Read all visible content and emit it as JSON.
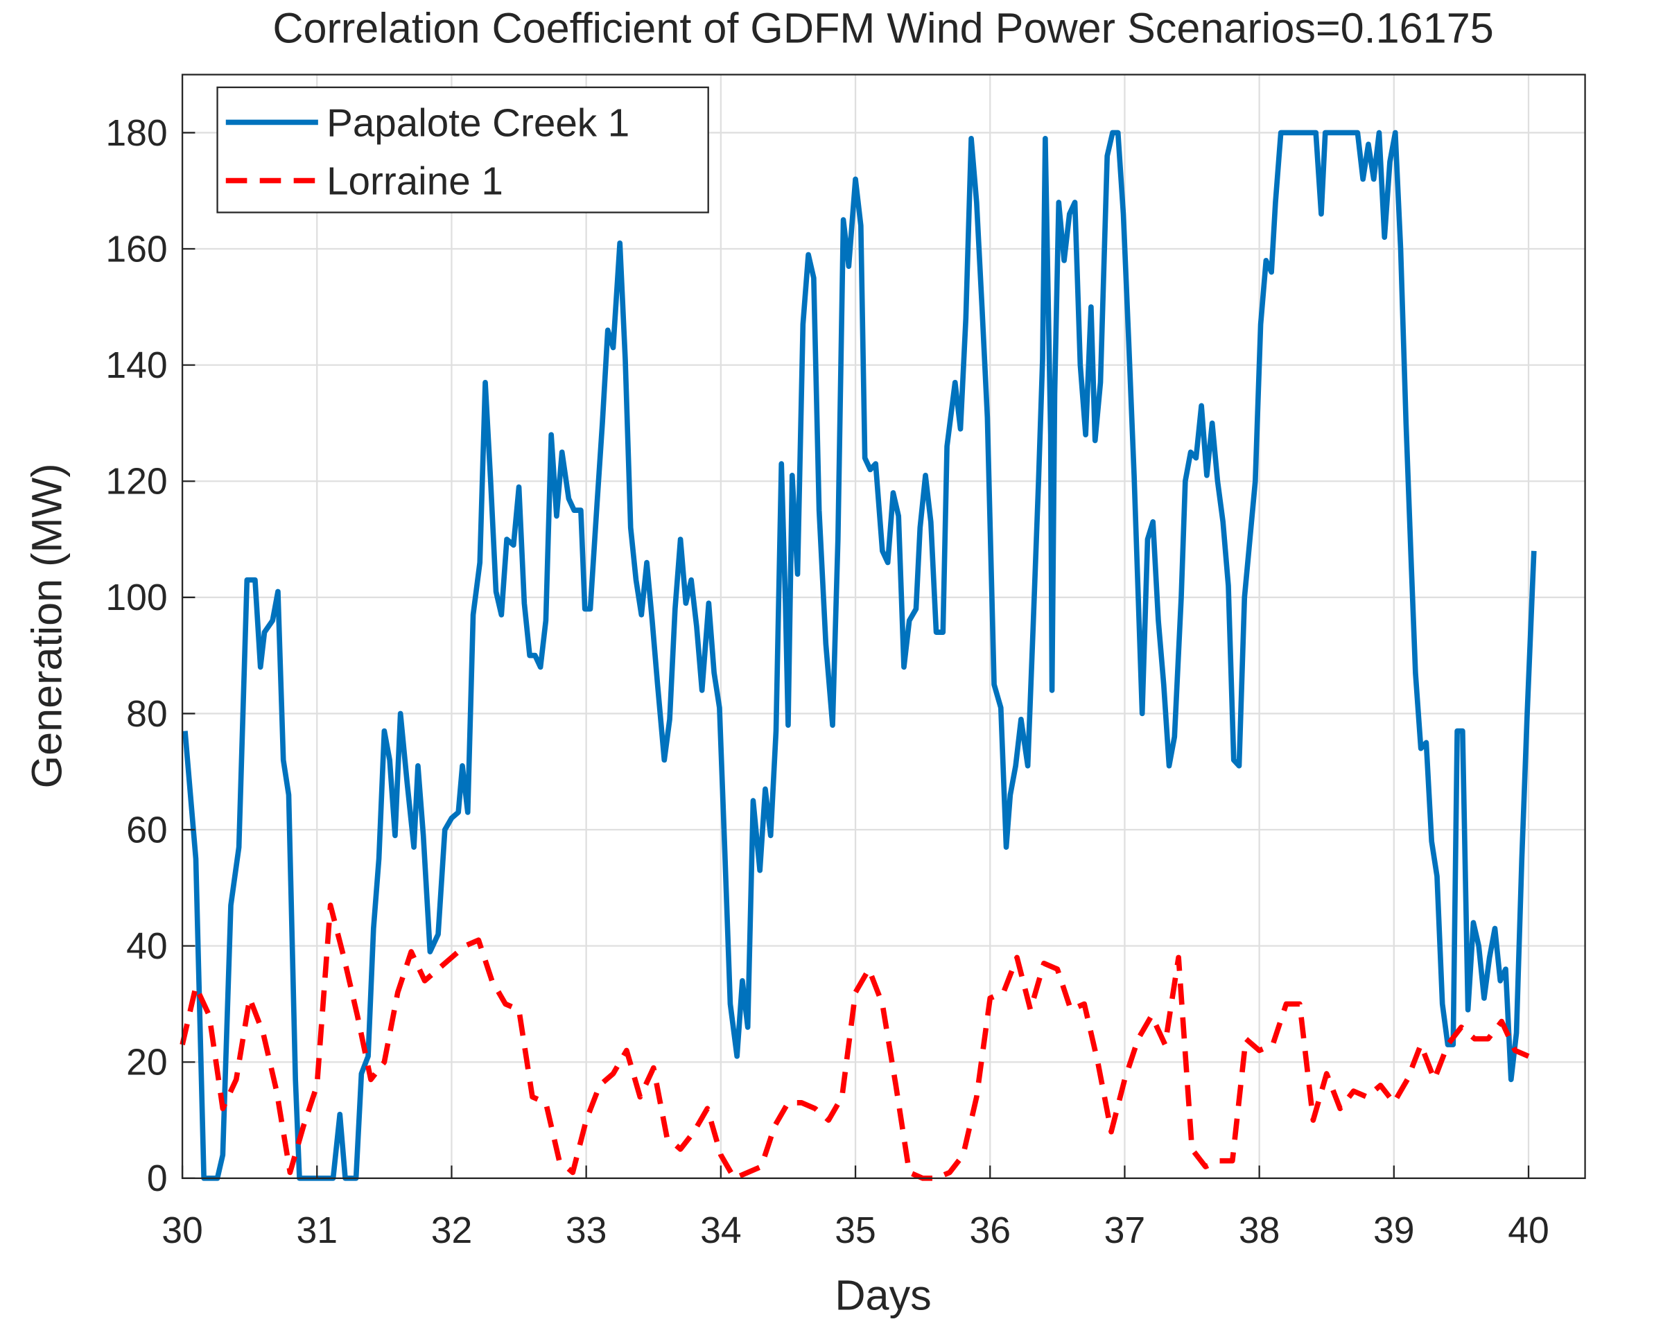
{
  "chart_data": {
    "type": "line",
    "title": "Correlation Coefficient of GDFM Wind Power Scenarios=0.16175",
    "xlabel": "Days",
    "ylabel": "Generation (MW)",
    "xlim": [
      30,
      40.42
    ],
    "ylim": [
      0,
      190
    ],
    "xticks": [
      30,
      31,
      32,
      33,
      34,
      35,
      36,
      37,
      38,
      39,
      40
    ],
    "yticks": [
      0,
      20,
      40,
      60,
      80,
      100,
      120,
      140,
      160,
      180
    ],
    "grid": true,
    "legend": "northwest",
    "series": [
      {
        "name": "Papalote Creek 1",
        "color": "#0072BD",
        "dash": false,
        "x": [
          30.02,
          30.1,
          30.16,
          30.26,
          30.3,
          30.36,
          30.42,
          30.48,
          30.54,
          30.58,
          30.61,
          30.67,
          30.71,
          30.75,
          30.79,
          30.84,
          30.87,
          31.01,
          31.12,
          31.17,
          31.21,
          31.29,
          31.33,
          31.38,
          31.42,
          31.46,
          31.5,
          31.54,
          31.58,
          31.62,
          31.67,
          31.72,
          31.75,
          31.79,
          31.84,
          31.9,
          31.95,
          32.0,
          32.05,
          32.08,
          32.12,
          32.16,
          32.21,
          32.25,
          32.29,
          32.33,
          32.37,
          32.41,
          32.46,
          32.5,
          32.54,
          32.58,
          32.62,
          32.66,
          32.7,
          32.74,
          32.78,
          32.82,
          32.87,
          32.91,
          32.96,
          32.99,
          33.03,
          33.08,
          33.12,
          33.16,
          33.2,
          33.25,
          33.29,
          33.33,
          33.37,
          33.41,
          33.45,
          33.49,
          33.53,
          33.58,
          33.62,
          33.66,
          33.7,
          33.74,
          33.78,
          33.82,
          33.86,
          33.91,
          33.95,
          33.99,
          34.03,
          34.07,
          34.12,
          34.16,
          34.2,
          34.24,
          34.29,
          34.33,
          34.37,
          34.41,
          34.45,
          34.48,
          34.5,
          34.53,
          34.57,
          34.61,
          34.65,
          34.69,
          34.73,
          34.78,
          34.83,
          34.87,
          34.91,
          34.95,
          35.0,
          35.04,
          35.07,
          35.11,
          35.15,
          35.2,
          35.24,
          35.28,
          35.32,
          35.36,
          35.4,
          35.45,
          35.48,
          35.52,
          35.56,
          35.6,
          35.65,
          35.68,
          35.74,
          35.78,
          35.82,
          35.86,
          35.9,
          35.94,
          35.98,
          36.03,
          36.08,
          36.12,
          36.15,
          36.19,
          36.23,
          36.28,
          36.32,
          36.36,
          36.39,
          36.41,
          36.45,
          36.46,
          36.48,
          36.51,
          36.55,
          36.59,
          36.63,
          36.67,
          36.71,
          36.75,
          36.78,
          36.82,
          36.87,
          36.91,
          36.95,
          36.99,
          37.03,
          37.07,
          37.13,
          37.17,
          37.21,
          37.25,
          37.29,
          37.33,
          37.37,
          37.42,
          37.45,
          37.49,
          37.53,
          37.57,
          37.61,
          37.65,
          37.69,
          37.73,
          37.77,
          37.81,
          37.85,
          37.89,
          37.93,
          37.97,
          38.01,
          38.05,
          38.09,
          38.12,
          38.16,
          38.42,
          38.46,
          38.49,
          38.73,
          38.77,
          38.81,
          38.85,
          38.89,
          38.93,
          38.97,
          39.01,
          39.05,
          39.09,
          39.13,
          39.16,
          39.2,
          39.24,
          39.28,
          39.32,
          39.36,
          39.4,
          39.44,
          39.47,
          39.51,
          39.55,
          39.59,
          39.63,
          39.67,
          39.71,
          39.75,
          39.79,
          39.83,
          39.87,
          39.91,
          39.95,
          39.99,
          40.04
        ],
        "values": [
          77,
          55,
          0,
          0,
          4,
          47,
          57,
          103,
          103,
          88,
          94,
          96,
          101,
          72,
          66,
          17,
          0,
          0,
          0,
          11,
          0,
          0,
          18,
          21,
          43,
          55,
          77,
          72,
          59,
          80,
          68,
          57,
          71,
          59,
          39,
          42,
          60,
          62,
          63,
          71,
          63,
          97,
          106,
          137,
          120,
          101,
          97,
          110,
          109,
          119,
          99,
          90,
          90,
          88,
          96,
          128,
          114,
          125,
          117,
          115,
          115,
          98,
          98,
          116,
          130,
          146,
          143,
          161,
          141,
          112,
          103,
          97,
          106,
          96,
          85,
          72,
          79,
          98,
          110,
          99,
          103,
          95,
          84,
          99,
          87,
          81,
          56,
          30,
          21,
          34,
          26,
          65,
          53,
          67,
          59,
          77,
          123,
          99,
          78,
          121,
          104,
          147,
          159,
          155,
          115,
          92,
          78,
          110,
          165,
          157,
          172,
          164,
          124,
          122,
          123,
          108,
          106,
          118,
          114,
          88,
          96,
          98,
          112,
          121,
          113,
          94,
          94,
          126,
          137,
          129,
          148,
          179,
          168,
          150,
          131,
          85,
          81,
          57,
          66,
          71,
          79,
          71,
          95,
          120,
          141,
          179,
          128,
          84,
          135,
          168,
          158,
          166,
          168,
          140,
          128,
          150,
          127,
          137,
          176,
          180,
          180,
          166,
          144,
          121,
          80,
          110,
          113,
          96,
          85,
          71,
          76,
          100,
          120,
          125,
          124,
          133,
          121,
          130,
          120,
          113,
          102,
          72,
          71,
          100,
          110,
          120,
          147,
          158,
          156,
          168,
          180,
          180,
          166,
          180,
          180,
          172,
          178,
          172,
          180,
          162,
          175,
          180,
          160,
          130,
          105,
          87,
          74,
          75,
          58,
          52,
          30,
          23,
          23,
          77,
          77,
          29,
          44,
          40,
          31,
          38,
          43,
          34,
          36,
          17,
          25,
          55,
          80,
          108
        ]
      },
      {
        "name": "Lorraine 1",
        "color": "#FF0000",
        "dash": true,
        "x": [
          30.0,
          30.1,
          30.2,
          30.3,
          30.4,
          30.5,
          30.6,
          30.7,
          30.8,
          30.9,
          31.0,
          31.1,
          31.2,
          31.3,
          31.4,
          31.5,
          31.6,
          31.7,
          31.8,
          31.9,
          32.0,
          32.1,
          32.2,
          32.3,
          32.4,
          32.5,
          32.6,
          32.7,
          32.8,
          32.9,
          33.0,
          33.1,
          33.2,
          33.3,
          33.4,
          33.5,
          33.6,
          33.7,
          33.8,
          33.9,
          34.0,
          34.1,
          34.2,
          34.3,
          34.4,
          34.5,
          34.6,
          34.7,
          34.8,
          34.9,
          35.0,
          35.1,
          35.2,
          35.3,
          35.4,
          35.5,
          35.6,
          35.7,
          35.8,
          35.9,
          36.0,
          36.1,
          36.2,
          36.3,
          36.4,
          36.5,
          36.6,
          36.7,
          36.8,
          36.9,
          37.0,
          37.1,
          37.2,
          37.3,
          37.4,
          37.5,
          37.6,
          37.7,
          37.8,
          37.9,
          38.0,
          38.1,
          38.2,
          38.3,
          38.4,
          38.5,
          38.6,
          38.7,
          38.8,
          38.9,
          39.0,
          39.1,
          39.2,
          39.3,
          39.4,
          39.5,
          39.6,
          39.7,
          39.8,
          39.9,
          40.0
        ],
        "values": [
          23,
          33,
          28,
          12,
          17,
          31,
          25,
          15,
          1,
          9,
          16,
          47,
          38,
          28,
          17,
          20,
          32,
          39,
          34,
          36,
          38,
          40,
          41,
          34,
          30,
          29,
          14,
          13,
          3,
          1,
          10,
          16,
          18,
          22,
          14,
          19,
          7,
          5,
          8,
          12,
          4,
          0,
          1,
          2,
          9,
          13,
          13,
          12,
          10,
          14,
          32,
          36,
          30,
          16,
          1,
          0,
          0,
          1,
          4,
          14,
          31,
          32,
          38,
          29,
          37,
          36,
          29,
          30,
          20,
          8,
          17,
          24,
          28,
          23,
          38,
          5,
          2,
          3,
          3,
          24,
          22,
          23,
          30,
          30,
          10,
          18,
          12,
          15,
          14,
          16,
          13,
          17,
          23,
          17,
          23,
          26,
          24,
          24,
          27,
          22,
          21
        ]
      }
    ]
  }
}
